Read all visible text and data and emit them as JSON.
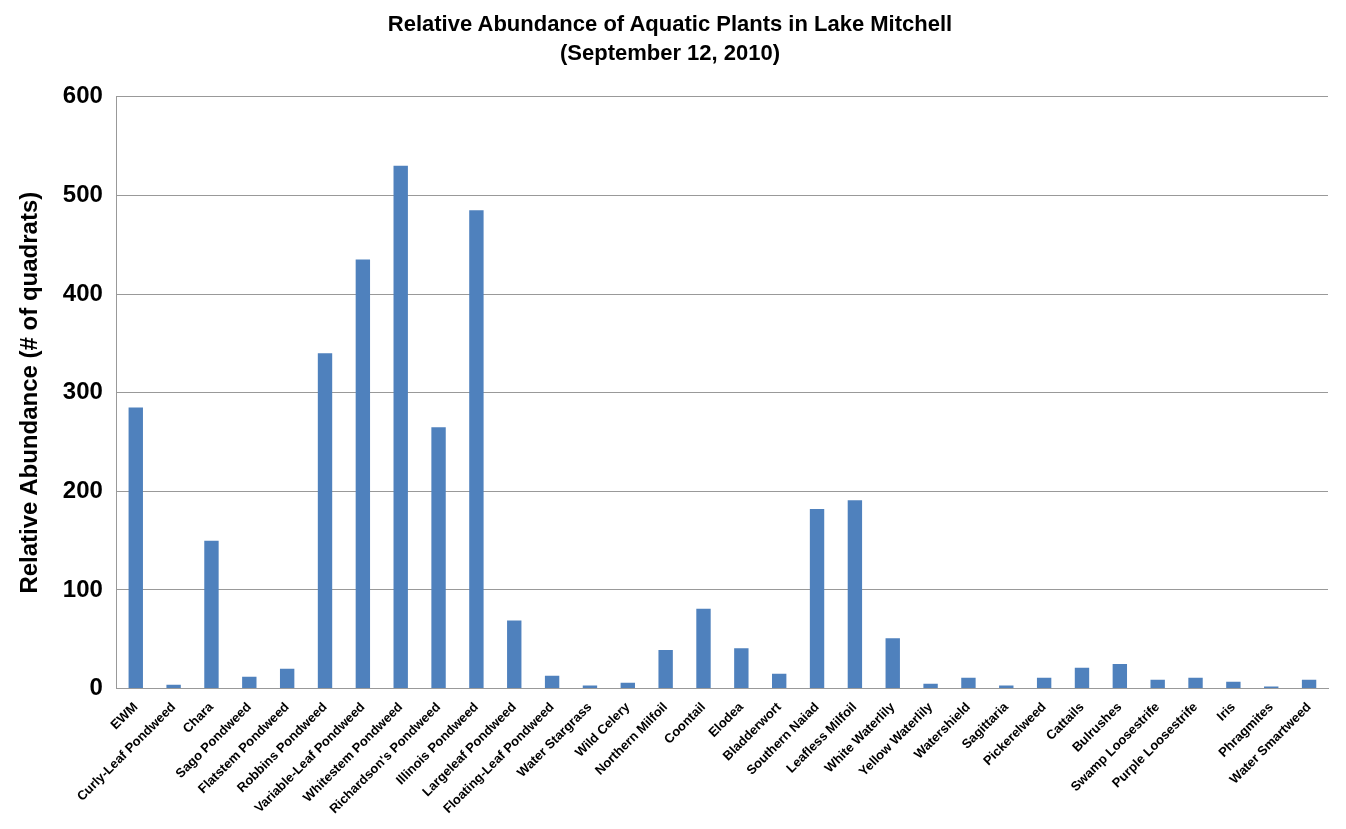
{
  "chart_data": {
    "type": "bar",
    "title": "Relative Abundance of Aquatic Plants in Lake Mitchell",
    "subtitle": "(September 12, 2010)",
    "ylabel": "Relative Abundance (# of quadrats)",
    "categories": [
      "EWM",
      "Curly-Leaf Pondweed",
      "Chara",
      "Sago Pondweed",
      "Flatstem Pondweed",
      "Robbins Pondweed",
      "Variable-Leaf Pondweed",
      "Whitestem Pondweed",
      "Richardson's Pondweed",
      "Illinois Pondweed",
      "Largeleaf Pondweed",
      "Floating-Leaf Pondweed",
      "Water Stargrass",
      "Wild Celery",
      "Northern Milfoil",
      "Coontail",
      "Elodea",
      "Bladderwort",
      "Southern Naiad",
      "Leafless Milfoil",
      "White Waterlily",
      "Yellow Waterlily",
      "Watershield",
      "Sagittaria",
      "Pickerelweed",
      "Cattails",
      "Bulrushes",
      "Swamp Loosestrife",
      "Purple Loosestrife",
      "Iris",
      "Phragmites",
      "Water Smartweed"
    ],
    "values": [
      285,
      4,
      150,
      12,
      20,
      340,
      435,
      530,
      265,
      485,
      69,
      13,
      3,
      6,
      39,
      81,
      41,
      15,
      182,
      191,
      51,
      5,
      11,
      3,
      11,
      21,
      25,
      9,
      11,
      7,
      2,
      9
    ],
    "color": "#4f81bd",
    "ylim": [
      0,
      600
    ],
    "yticks": [
      0,
      100,
      200,
      300,
      400,
      500,
      600
    ],
    "grid": "y",
    "legend": false
  }
}
